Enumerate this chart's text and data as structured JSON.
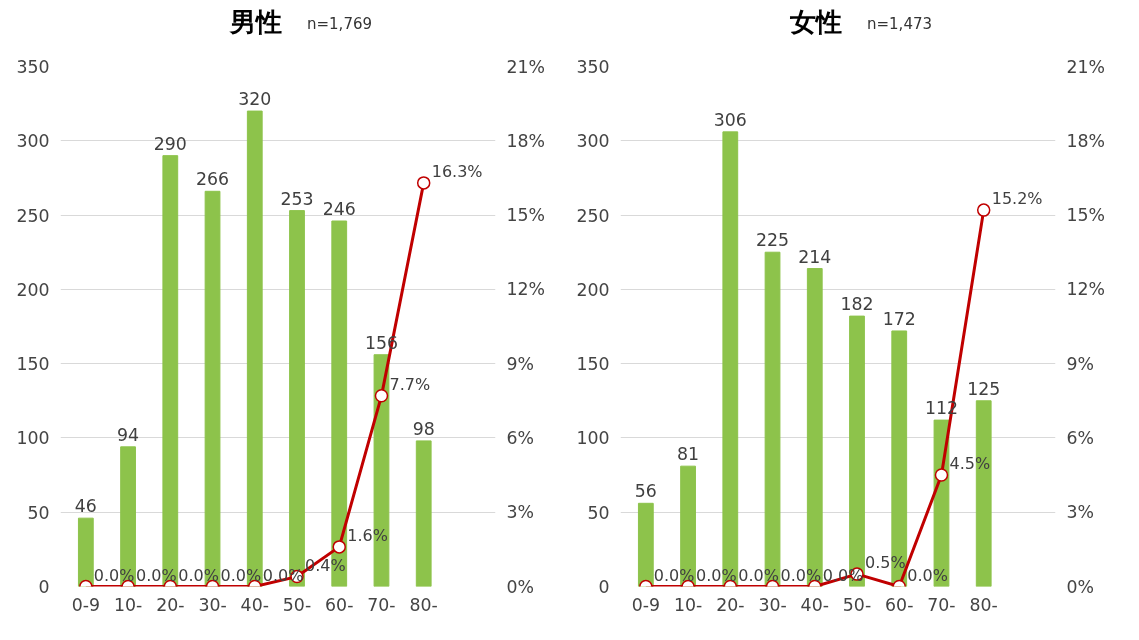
{
  "chart_data": [
    {
      "type": "bar",
      "title": "男性",
      "subtitle": "n=1,769",
      "categories": [
        "0-9",
        "10-",
        "20-",
        "30-",
        "40-",
        "50-",
        "60-",
        "70-",
        "80-"
      ],
      "ylim": [
        0,
        350
      ],
      "yticks": [
        0,
        50,
        100,
        150,
        200,
        250,
        300,
        350
      ],
      "y2lim": [
        0,
        21
      ],
      "y2ticks": [
        {
          "value": 0,
          "label": "0%"
        },
        {
          "value": 3,
          "label": "3%"
        },
        {
          "value": 6,
          "label": "6%"
        },
        {
          "value": 9,
          "label": "9%"
        },
        {
          "value": 12,
          "label": "12%"
        },
        {
          "value": 15,
          "label": "15%"
        },
        {
          "value": 18,
          "label": "18%"
        },
        {
          "value": 21,
          "label": "21%"
        }
      ],
      "grid": "y",
      "series": [
        {
          "color": "#8dc34b",
          "values": [
            46,
            94,
            290,
            266,
            320,
            253,
            246,
            156,
            98
          ],
          "value_labels": [
            "46",
            "94",
            "290",
            "266",
            "320",
            "253",
            "246",
            "156",
            "98"
          ]
        },
        {
          "type": "line",
          "axis": "y2",
          "color": "#c00000",
          "marker": "circle",
          "line_style": "solid",
          "values": [
            0,
            0,
            0,
            0,
            0,
            0.4,
            1.6,
            7.7,
            16.3
          ],
          "value_labels": [
            "0.0%",
            "0.0%",
            "0.0%",
            "0.0%",
            "0.0%",
            "0.4%",
            "1.6%",
            "7.7%",
            "16.3%"
          ]
        }
      ]
    },
    {
      "type": "bar",
      "title": "女性",
      "subtitle": "n=1,473",
      "categories": [
        "0-9",
        "10-",
        "20-",
        "30-",
        "40-",
        "50-",
        "60-",
        "70-",
        "80-"
      ],
      "ylim": [
        0,
        350
      ],
      "yticks": [
        0,
        50,
        100,
        150,
        200,
        250,
        300,
        350
      ],
      "y2lim": [
        0,
        21
      ],
      "y2ticks": [
        {
          "value": 0,
          "label": "0%"
        },
        {
          "value": 3,
          "label": "3%"
        },
        {
          "value": 6,
          "label": "6%"
        },
        {
          "value": 9,
          "label": "9%"
        },
        {
          "value": 12,
          "label": "12%"
        },
        {
          "value": 15,
          "label": "15%"
        },
        {
          "value": 18,
          "label": "18%"
        },
        {
          "value": 21,
          "label": "21%"
        }
      ],
      "grid": "y",
      "series": [
        {
          "color": "#8dc34b",
          "values": [
            56,
            81,
            306,
            225,
            214,
            182,
            172,
            112,
            125
          ],
          "value_labels": [
            "56",
            "81",
            "306",
            "225",
            "214",
            "182",
            "172",
            "112",
            "125"
          ]
        },
        {
          "type": "line",
          "axis": "y2",
          "color": "#c00000",
          "marker": "circle",
          "line_style": "solid",
          "values": [
            0,
            0,
            0,
            0,
            0,
            0.5,
            0.0,
            4.5,
            15.2
          ],
          "value_labels": [
            "0.0%",
            "0.0%",
            "0.0%",
            "0.0%",
            "0.0%",
            "0.5%",
            "0.0%",
            "4.5%",
            "15.2%"
          ]
        }
      ]
    }
  ]
}
